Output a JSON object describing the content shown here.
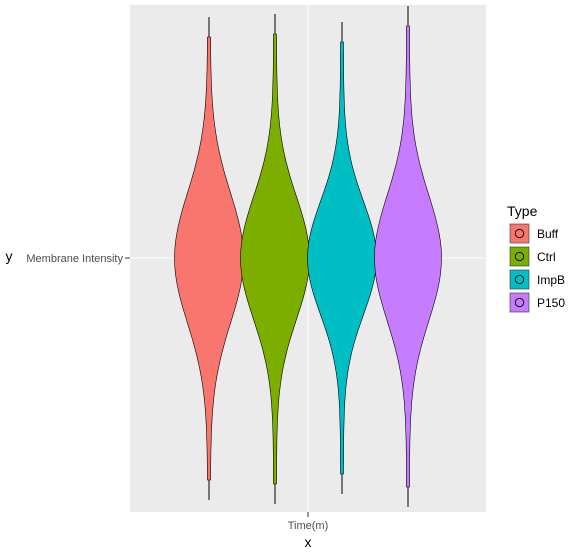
{
  "chart_data": {
    "type": "violin",
    "x_axis": {
      "title": "x",
      "tick_labels": [
        "Time(m)"
      ]
    },
    "y_axis": {
      "title": "y",
      "tick_labels": [
        "Membrane Intensity"
      ]
    },
    "legend": {
      "title": "Type",
      "position": "right"
    },
    "grid": true,
    "series": [
      {
        "name": "Buff",
        "color": "#F8766D"
      },
      {
        "name": "Ctrl",
        "color": "#7CAE00"
      },
      {
        "name": "ImpB",
        "color": "#00BFC4"
      },
      {
        "name": "P150",
        "color": "#C77CFF"
      }
    ],
    "panel_background": "#EBEBEB",
    "gridline_color": "#FFFFFF"
  }
}
